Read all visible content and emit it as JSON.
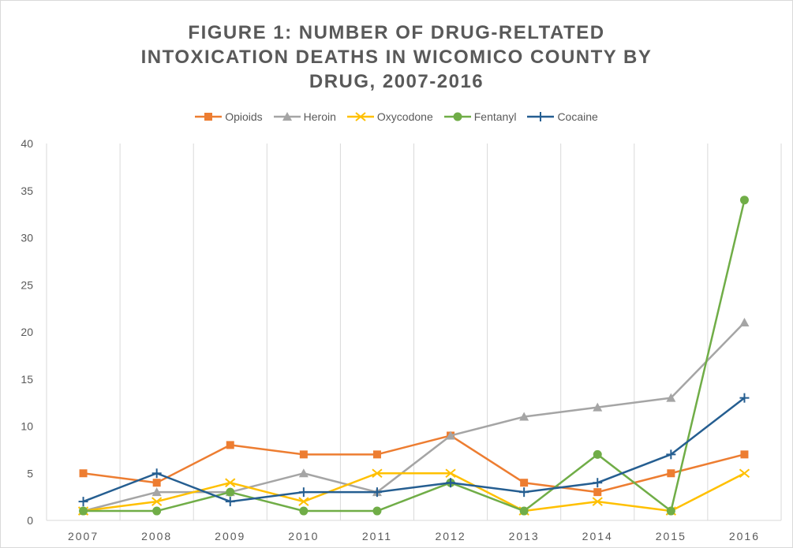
{
  "chart_data": {
    "type": "line",
    "title_lines": [
      "FIGURE 1: NUMBER OF DRUG-RELTATED",
      "INTOXICATION DEATHS IN WICOMICO COUNTY BY",
      "DRUG, 2007-2016"
    ],
    "xlabel": "",
    "ylabel": "",
    "categories": [
      "2007",
      "2008",
      "2009",
      "2010",
      "2011",
      "2012",
      "2013",
      "2014",
      "2015",
      "2016"
    ],
    "ylim": [
      0,
      40
    ],
    "yticks": [
      "0",
      "5",
      "10",
      "15",
      "20",
      "25",
      "30",
      "35",
      "40"
    ],
    "grid": "vertical",
    "legend_position": "top",
    "series": [
      {
        "name": "Opioids",
        "color": "#ed7d31",
        "marker": "square",
        "values": [
          5,
          4,
          8,
          7,
          7,
          9,
          4,
          3,
          5,
          7
        ]
      },
      {
        "name": "Heroin",
        "color": "#a5a5a5",
        "marker": "triangle",
        "values": [
          1,
          3,
          3,
          5,
          3,
          9,
          11,
          12,
          13,
          21
        ]
      },
      {
        "name": "Oxycodone",
        "color": "#ffc000",
        "marker": "x",
        "values": [
          1,
          2,
          4,
          2,
          5,
          5,
          1,
          2,
          1,
          5
        ]
      },
      {
        "name": "Fentanyl",
        "color": "#70ad47",
        "marker": "circle",
        "values": [
          1,
          1,
          3,
          1,
          1,
          4,
          1,
          7,
          1,
          34
        ]
      },
      {
        "name": "Cocaine",
        "color": "#255e91",
        "marker": "plus",
        "values": [
          2,
          5,
          2,
          3,
          3,
          4,
          3,
          4,
          7,
          13
        ]
      }
    ]
  }
}
